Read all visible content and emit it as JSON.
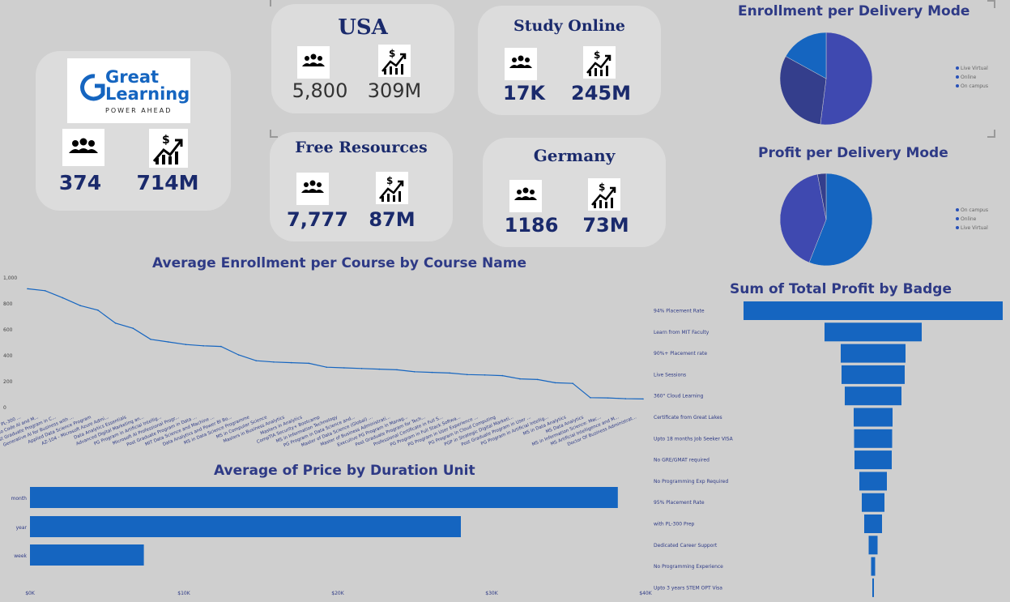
{
  "brand": {
    "name_line1": "Great",
    "name_line2": "Learning",
    "tagline": "POWER AHEAD",
    "learners": "374",
    "profit": "714M"
  },
  "kpis": {
    "usa": {
      "title": "USA",
      "learners": "5,800",
      "profit": "309M"
    },
    "study_online": {
      "title": "Study Online",
      "learners": "17K",
      "profit": "245M"
    },
    "free_resources": {
      "title": "Free Resources",
      "learners": "7,777",
      "profit": "87M"
    },
    "germany": {
      "title": "Germany",
      "learners": "1186",
      "profit": "73M"
    }
  },
  "icons": {
    "learners": "people-group-icon",
    "profit": "money-growth-icon"
  },
  "colors": {
    "primary": "#1565c0",
    "purple": "#3f49b0",
    "dark_purple": "#343e8c"
  },
  "chart_data": [
    {
      "type": "pie",
      "title": "Enrollment per Delivery Mode",
      "legend": [
        "Live Virtual",
        "Online",
        "On campus"
      ],
      "values": [
        52,
        31,
        17
      ],
      "legend_position": "right"
    },
    {
      "type": "pie",
      "title": "Profit per Delivery Mode",
      "legend": [
        "On campus",
        "Online",
        "Live Virtual"
      ],
      "values": [
        56,
        41,
        3
      ],
      "legend_position": "right"
    },
    {
      "type": "line",
      "title": "Average Enrollment per Course by Course Name",
      "yticks": [
        "1,000",
        "800",
        "600",
        "400",
        "200",
        "0"
      ],
      "ylim": [
        0,
        1000
      ],
      "categories": [
        "PL-300 ...",
        "No Code AI and M...",
        "Post Graduate Program in C...",
        "Generative AI for Business with ...",
        "Applied Data Science Program",
        "AZ-104 - Microsoft Azure Admi...",
        "Data Analytics Essentials",
        "Advanced Digital Marketing an...",
        "PG Program in Artificial Intellig...",
        "Microsoft AI Professional Progr...",
        "Post Graduate Program in Data ...",
        "MIT Data Science and Machine ...",
        "Data Analytics and Power BI Bo...",
        "MS in Data Science Programme",
        "MS in Computer Science",
        "Masters in Business Analytics",
        "Masters in Analytics",
        "CompTIA Security+ Bootcamp",
        "MS in Information Technology",
        "PG Program in Data Science and...",
        "Master of Data Science (Global) ...",
        "Master of Business Administrati...",
        "Executive PG Program in Manag...",
        "Post Graduate Program for Tech...",
        "Professional Certificate in Full S...",
        "PG Program in Full Stack Softwa...",
        "PG Program in User Experience ...",
        "PG Program in Cloud Computing",
        "PGP in Strategic Digital Marketi...",
        "Post Graduate Program in User ...",
        "PG Program in Artificial Intellig...",
        "MS in Data Analytics",
        "MS Data Analytics",
        "MS in Information Science: Mac...",
        "MS Artificial Intelligence and M...",
        "Doctor Of Business Administrat..."
      ],
      "values": [
        910,
        895,
        840,
        780,
        745,
        645,
        605,
        520,
        500,
        480,
        470,
        465,
        400,
        355,
        345,
        340,
        335,
        305,
        300,
        295,
        290,
        285,
        270,
        265,
        260,
        248,
        245,
        240,
        215,
        210,
        185,
        180,
        70,
        68,
        62,
        60
      ]
    },
    {
      "type": "bar",
      "title": "Average of Price by Duration Unit",
      "categories": [
        "month",
        "year",
        "week"
      ],
      "values": [
        38200,
        28000,
        7400
      ],
      "xticks": [
        "$0K",
        "$10K",
        "$20K",
        "$30K",
        "$40K"
      ],
      "xlim": [
        0,
        40000
      ]
    },
    {
      "type": "bar",
      "title": "Sum of Total Profit by Badge",
      "categories": [
        "94% Placement Rate",
        "Learn from MIT Faculty",
        "90%+ Placement rate",
        "Live Sessions",
        "360° Cloud Learning",
        "Certificate from Great Lakes",
        "Upto 18 months Job Seeker VISA",
        "No GRE/GMAT required",
        "No Programming Exp Required",
        "95% Placement Rate",
        "with PL-300 Prep",
        "Dedicated Career Support",
        "No Programming Experience",
        "Upto 3 years STEM OPT Visa"
      ],
      "values": [
        320,
        120,
        80,
        78,
        70,
        48,
        47,
        46,
        34,
        28,
        22,
        11,
        5,
        2
      ]
    }
  ]
}
